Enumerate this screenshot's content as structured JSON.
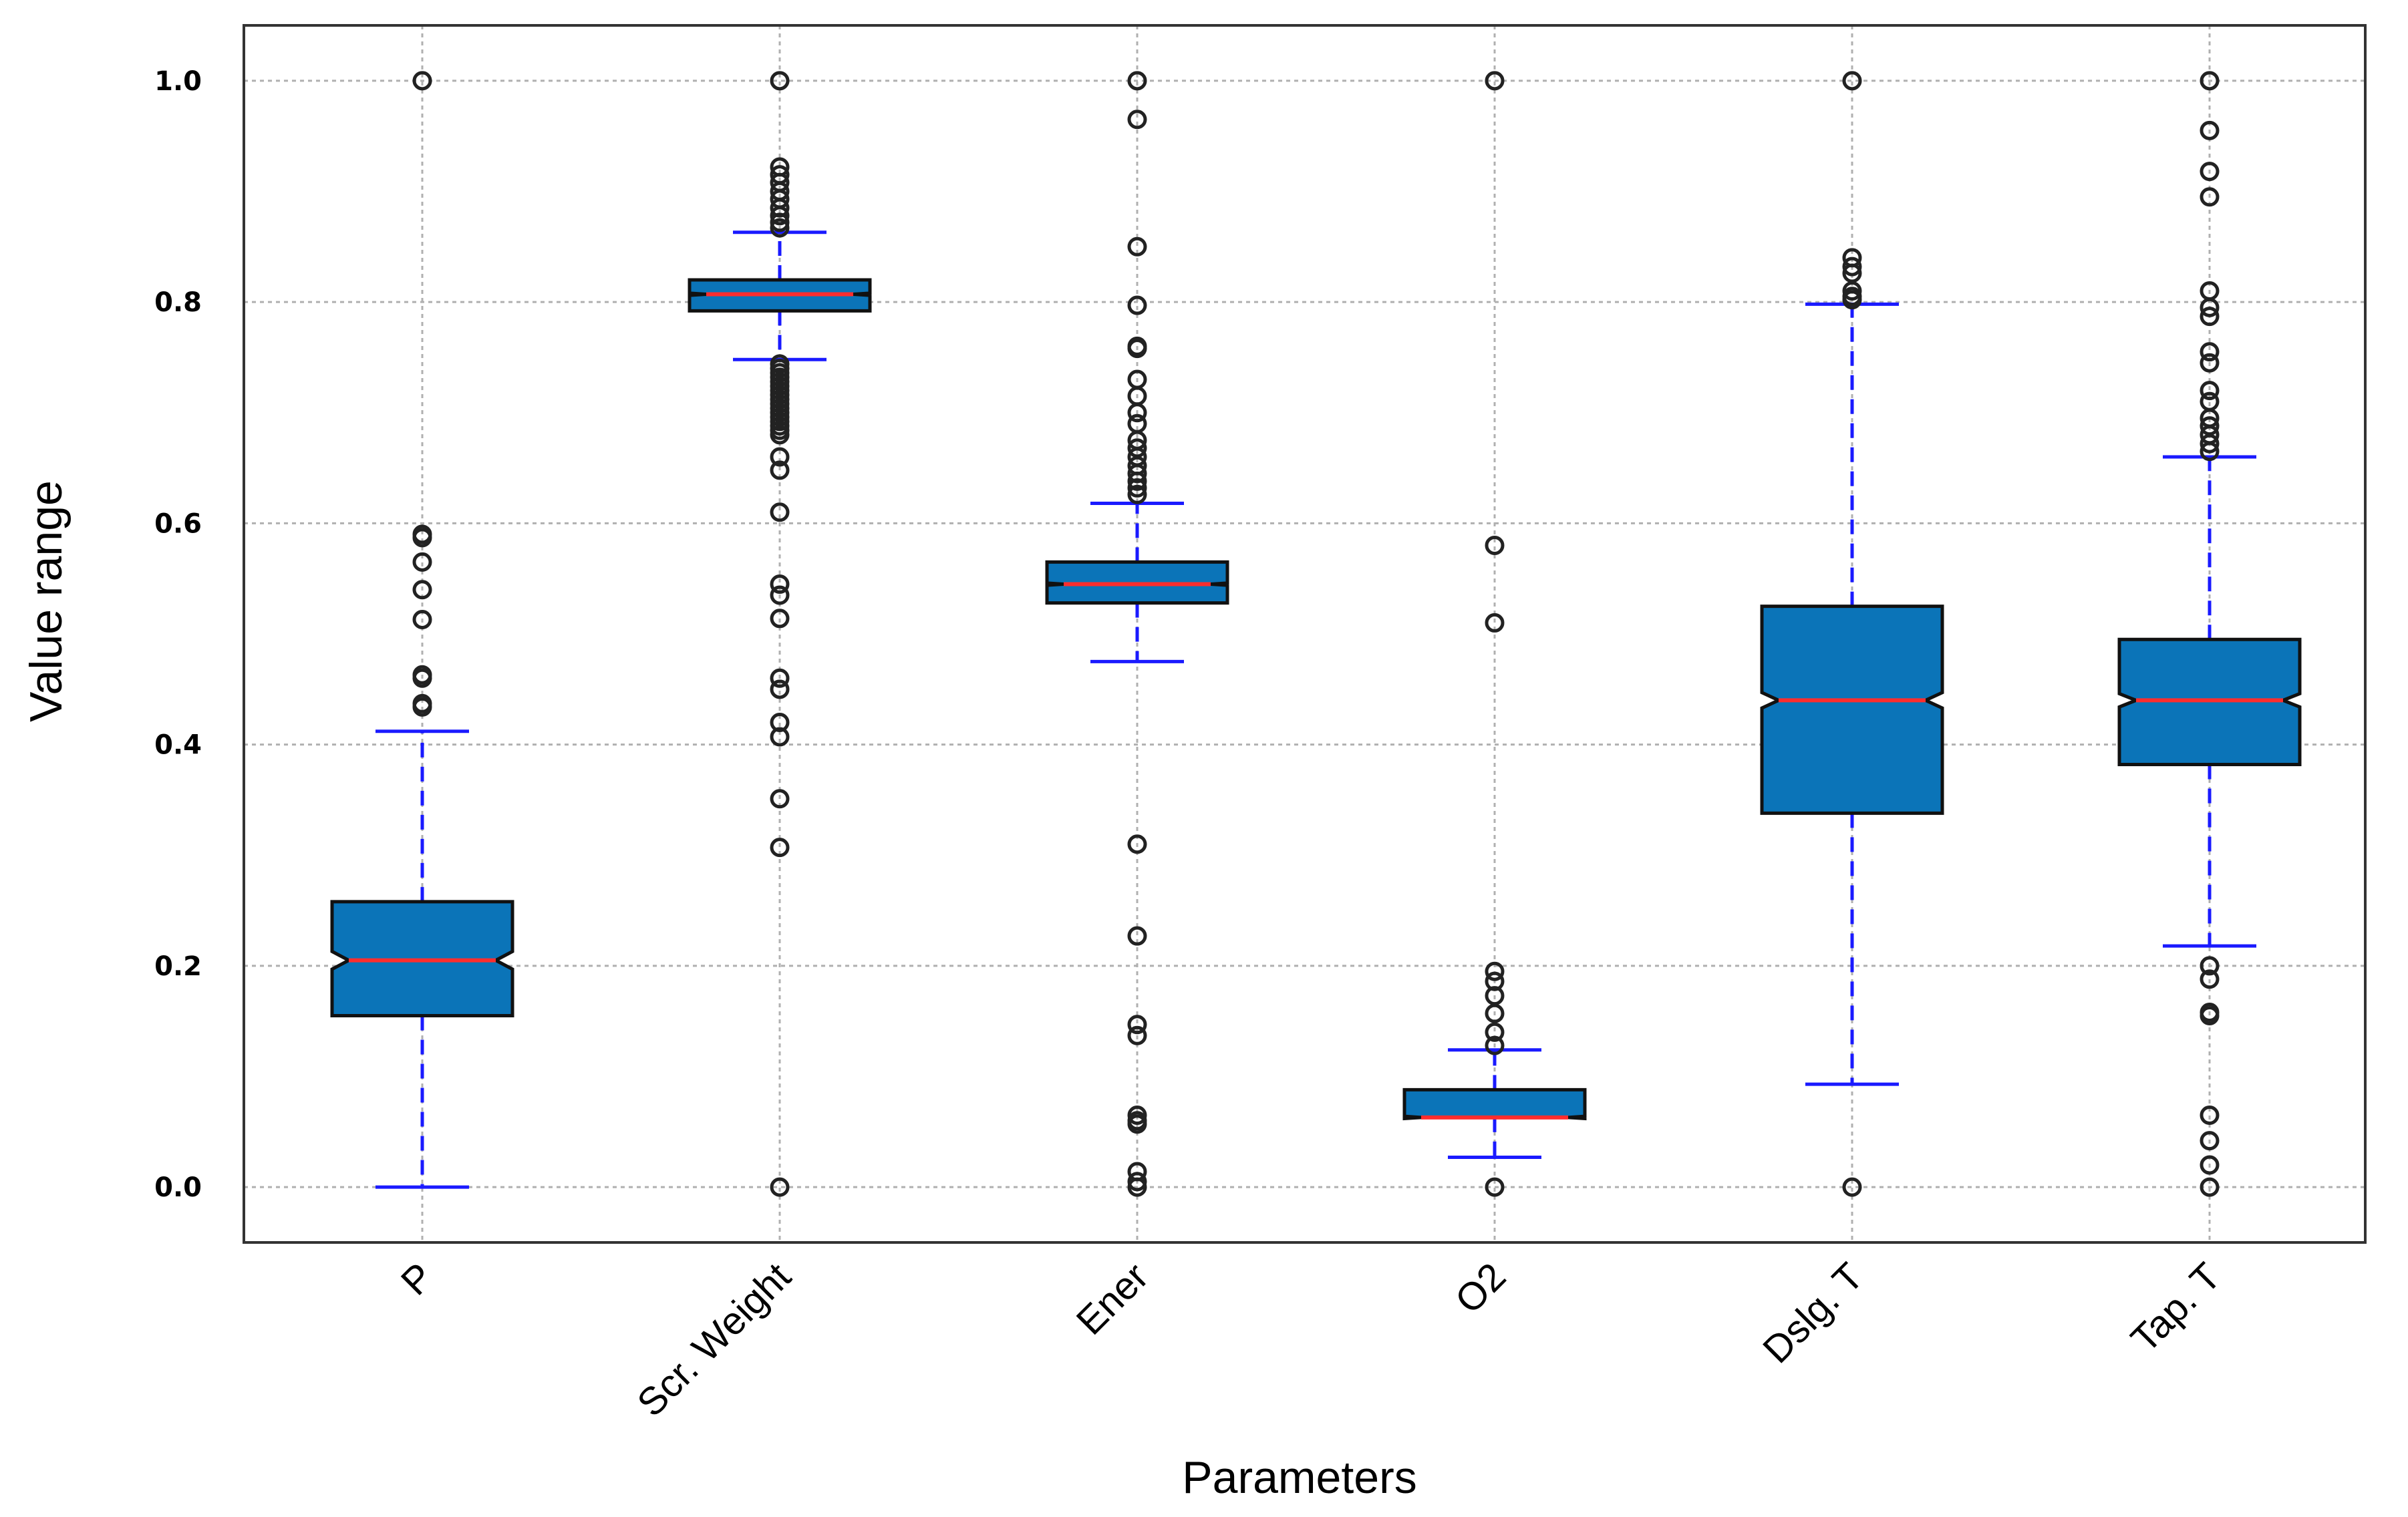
{
  "chart_data": {
    "type": "box",
    "notched": true,
    "xlabel": "Parameters",
    "ylabel": "Value range",
    "ylim": [
      -0.05,
      1.05
    ],
    "yticks": [
      "0.0",
      "0.2",
      "0.4",
      "0.6",
      "0.8",
      "1.0"
    ],
    "grid": true,
    "colors": {
      "box": "#0b74b8",
      "median": "#ff2d2d",
      "whisker": "#1a1aff",
      "flier": "#222222"
    },
    "categories": [
      "P",
      "Scr. Weight",
      "Ener",
      "O2",
      "Dslg. T",
      "Tap. T"
    ],
    "boxes": [
      {
        "name": "P",
        "q1": 0.155,
        "median": 0.205,
        "q3": 0.258,
        "notch_low": 0.197,
        "notch_high": 0.213,
        "whisker_low": 0.0,
        "whisker_high": 0.412,
        "fliers": [
          1.0,
          0.59,
          0.587,
          0.565,
          0.54,
          0.513,
          0.463,
          0.46,
          0.437,
          0.434
        ]
      },
      {
        "name": "Scr. Weight",
        "q1": 0.792,
        "median": 0.807,
        "q3": 0.82,
        "notch_low": 0.806,
        "notch_high": 0.808,
        "whisker_low": 0.748,
        "whisker_high": 0.863,
        "fliers": [
          1.0,
          0.922,
          0.915,
          0.908,
          0.9,
          0.893,
          0.885,
          0.878,
          0.872,
          0.867,
          0.744,
          0.74,
          0.736,
          0.732,
          0.728,
          0.724,
          0.72,
          0.716,
          0.712,
          0.708,
          0.704,
          0.7,
          0.696,
          0.692,
          0.688,
          0.684,
          0.68,
          0.66,
          0.648,
          0.61,
          0.545,
          0.535,
          0.514,
          0.46,
          0.45,
          0.42,
          0.407,
          0.351,
          0.307,
          0.0
        ]
      },
      {
        "name": "Ener",
        "q1": 0.528,
        "median": 0.545,
        "q3": 0.565,
        "notch_low": 0.544,
        "notch_high": 0.546,
        "whisker_low": 0.475,
        "whisker_high": 0.618,
        "fliers": [
          1.0,
          0.965,
          0.85,
          0.797,
          0.76,
          0.758,
          0.73,
          0.715,
          0.7,
          0.69,
          0.675,
          0.668,
          0.66,
          0.652,
          0.645,
          0.638,
          0.632,
          0.626,
          0.31,
          0.227,
          0.147,
          0.137,
          0.065,
          0.06,
          0.057,
          0.014,
          0.005,
          0.0
        ]
      },
      {
        "name": "O2",
        "q1": 0.063,
        "median": 0.063,
        "q3": 0.088,
        "notch_low": 0.062,
        "notch_high": 0.064,
        "whisker_low": 0.027,
        "whisker_high": 0.124,
        "fliers": [
          1.0,
          0.58,
          0.51,
          0.195,
          0.186,
          0.173,
          0.157,
          0.14,
          0.128,
          0.0
        ]
      },
      {
        "name": "Dslg. T",
        "q1": 0.338,
        "median": 0.44,
        "q3": 0.525,
        "notch_low": 0.433,
        "notch_high": 0.447,
        "whisker_low": 0.093,
        "whisker_high": 0.798,
        "fliers": [
          1.0,
          0.84,
          0.832,
          0.826,
          0.81,
          0.805,
          0.802,
          0.0
        ]
      },
      {
        "name": "Tap. T",
        "q1": 0.382,
        "median": 0.44,
        "q3": 0.495,
        "notch_low": 0.434,
        "notch_high": 0.446,
        "whisker_low": 0.218,
        "whisker_high": 0.66,
        "fliers": [
          1.0,
          0.955,
          0.918,
          0.895,
          0.81,
          0.795,
          0.787,
          0.755,
          0.745,
          0.72,
          0.71,
          0.695,
          0.688,
          0.68,
          0.672,
          0.665,
          0.2,
          0.188,
          0.158,
          0.155,
          0.065,
          0.042,
          0.02,
          0.0
        ]
      }
    ]
  }
}
